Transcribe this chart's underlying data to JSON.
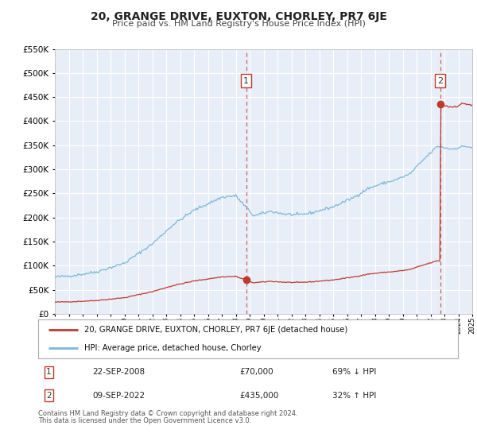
{
  "title": "20, GRANGE DRIVE, EUXTON, CHORLEY, PR7 6JE",
  "subtitle": "Price paid vs. HM Land Registry's House Price Index (HPI)",
  "legend_line1": "20, GRANGE DRIVE, EUXTON, CHORLEY, PR7 6JE (detached house)",
  "legend_line2": "HPI: Average price, detached house, Chorley",
  "annotation1_label": "1",
  "annotation1_date": "22-SEP-2008",
  "annotation1_price": "£70,000",
  "annotation1_hpi": "69% ↓ HPI",
  "annotation2_label": "2",
  "annotation2_date": "09-SEP-2022",
  "annotation2_price": "£435,000",
  "annotation2_hpi": "32% ↑ HPI",
  "sale1_year": 2008.75,
  "sale1_price": 70000,
  "sale2_year": 2022.69,
  "sale2_price": 435000,
  "hpi_color": "#7ab8d9",
  "price_color": "#c0392b",
  "vline_color": "#c0392b",
  "bg_color": "#e8eef8",
  "grid_color": "#ffffff",
  "footnote_line1": "Contains HM Land Registry data © Crown copyright and database right 2024.",
  "footnote_line2": "This data is licensed under the Open Government Licence v3.0.",
  "ylim": [
    0,
    550000
  ],
  "yticks": [
    0,
    50000,
    100000,
    150000,
    200000,
    250000,
    300000,
    350000,
    400000,
    450000,
    500000,
    550000
  ],
  "xstart": 1995,
  "xend": 2025
}
